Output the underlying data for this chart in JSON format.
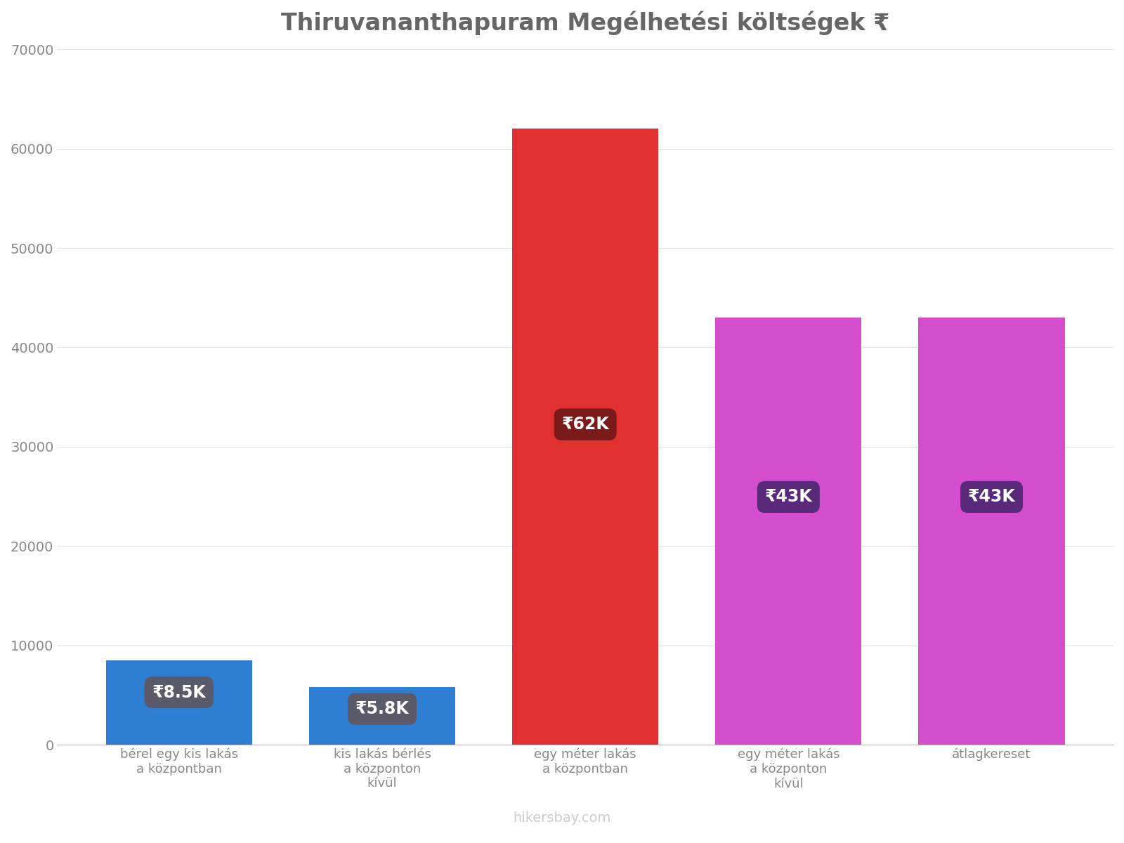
{
  "title": "Thiruvananthapuram Megélhetési költségek ₹",
  "categories": [
    "bérel egy kis lakás\na központban",
    "kis lakás bérlés\na központon\nkívül",
    "egy méter lakás\na központban",
    "egy méter lakás\na központon\nkívül",
    "átlagkereset"
  ],
  "values": [
    8500,
    5800,
    62000,
    43000,
    43000
  ],
  "bar_colors": [
    "#2e7fd4",
    "#2e7fd4",
    "#e03030",
    "#d44dcc",
    "#d44dcc"
  ],
  "label_texts": [
    "₹8.5K",
    "₹5.8K",
    "₹62K",
    "₹43K",
    "₹43K"
  ],
  "label_bg_colors": [
    "#5a5a6a",
    "#5a5a6a",
    "#7a1a1a",
    "#5a2a7a",
    "#5a2a7a"
  ],
  "ylim": [
    0,
    70000
  ],
  "yticks": [
    0,
    10000,
    20000,
    30000,
    40000,
    50000,
    60000,
    70000
  ],
  "title_fontsize": 24,
  "tick_fontsize": 14,
  "label_fontsize": 17,
  "xlabel_fontsize": 13,
  "watermark": "hikersbay.com",
  "background_color": "#ffffff"
}
